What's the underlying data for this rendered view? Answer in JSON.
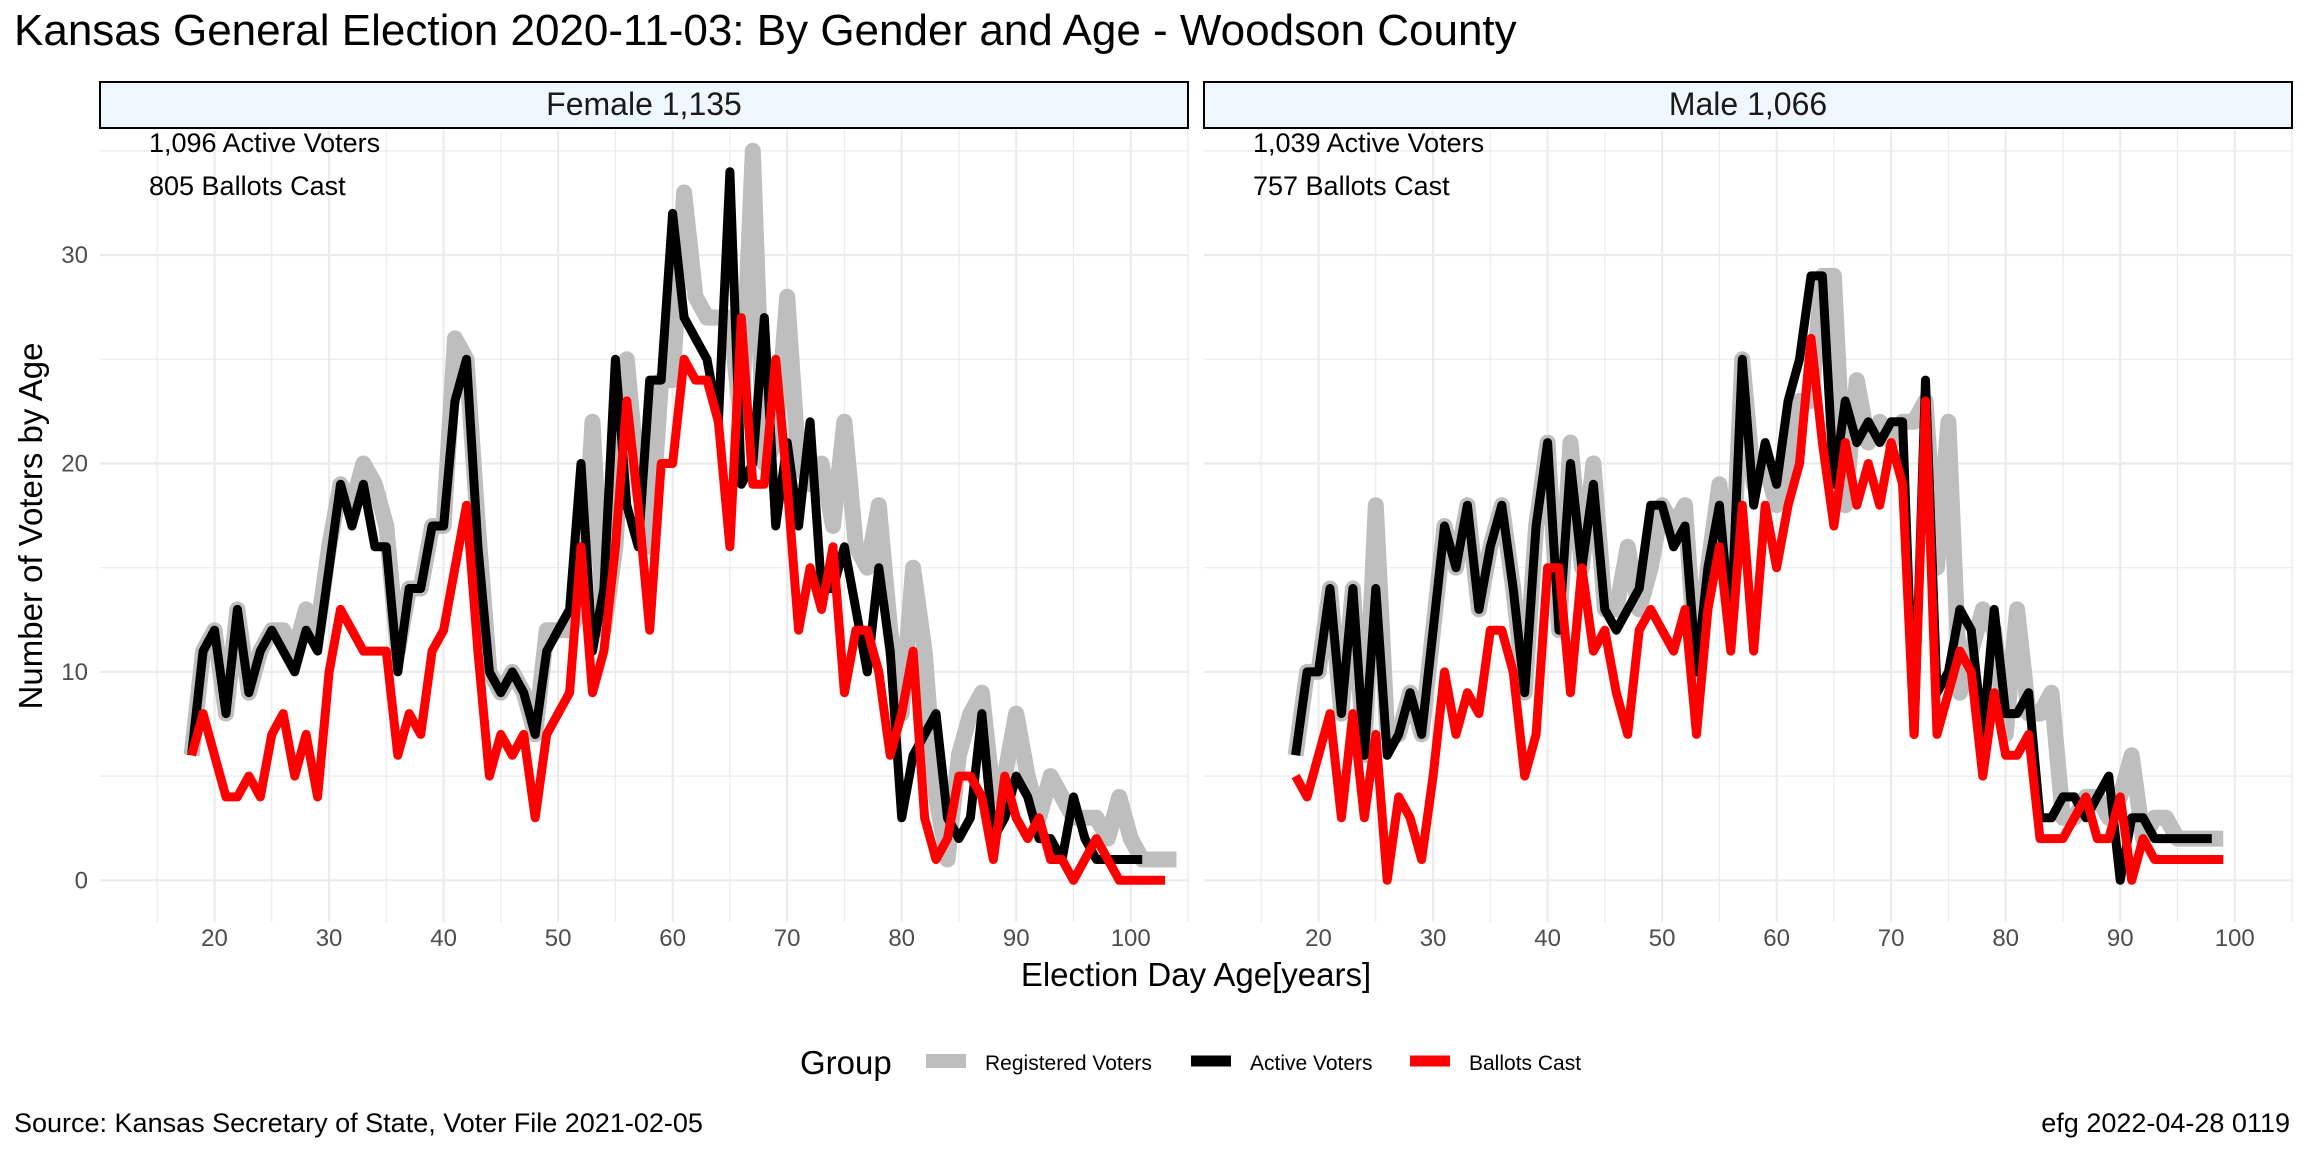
{
  "title": "Kansas General Election 2020-11-03:  By Gender and Age - Woodson County",
  "source": "Source:  Kansas Secretary of State, Voter File  2021-02-05",
  "stamp": "efg 2022-04-28 0119",
  "colors": {
    "registered": "#bebebe",
    "active": "#000000",
    "ballots": "#ff0000",
    "strip_bg": "#f0f8ff",
    "grid": "#ebebeb"
  },
  "chart_data": {
    "type": "line",
    "xlabel": "Election Day Age[years]",
    "ylabel": "Number of Voters by Age",
    "xlim": [
      10,
      105
    ],
    "ylim": [
      -2,
      36
    ],
    "x_ticks": [
      20,
      30,
      40,
      50,
      60,
      70,
      80,
      90,
      100
    ],
    "y_ticks": [
      0,
      10,
      20,
      30
    ],
    "grid": true,
    "legend": {
      "position": "bottom",
      "title": "Group",
      "entries": [
        "Registered Voters",
        "Active Voters",
        "Ballots Cast"
      ]
    },
    "panels": [
      {
        "strip": "Female 1,135",
        "annotations": [
          "1,096 Active Voters",
          "805 Ballots Cast"
        ],
        "series": [
          {
            "name": "Registered Voters",
            "x_start": 18,
            "values": [
              6,
              11,
              12,
              8,
              13,
              9,
              11,
              12,
              12,
              11,
              13,
              12,
              16,
              19,
              18,
              20,
              19,
              17,
              11,
              14,
              14,
              17,
              17,
              26,
              25,
              17,
              10,
              9,
              10,
              9,
              7,
              12,
              12,
              12,
              13,
              22,
              12,
              16,
              25,
              19,
              16,
              24,
              24,
              33,
              28,
              27,
              27,
              27,
              22,
              35,
              20,
              21,
              28,
              20,
              19,
              20,
              17,
              22,
              16,
              15,
              18,
              12,
              8,
              15,
              11,
              4,
              1,
              6,
              8,
              9,
              4,
              5,
              8,
              5,
              3,
              5,
              4,
              3,
              3,
              3,
              2,
              4,
              2,
              1,
              1,
              1,
              1
            ]
          },
          {
            "name": "Active Voters",
            "x_start": 18,
            "values": [
              6,
              11,
              12,
              8,
              13,
              9,
              11,
              12,
              11,
              10,
              12,
              11,
              15,
              19,
              17,
              19,
              16,
              16,
              10,
              14,
              14,
              17,
              17,
              23,
              25,
              16,
              10,
              9,
              10,
              9,
              7,
              11,
              12,
              13,
              20,
              11,
              14,
              25,
              18,
              16,
              24,
              24,
              32,
              27,
              26,
              25,
              22,
              34,
              19,
              20,
              27,
              17,
              21,
              17,
              22,
              14,
              14,
              16,
              13,
              10,
              15,
              11,
              3,
              6,
              7,
              8,
              3,
              2,
              3,
              8,
              2,
              3,
              5,
              4,
              2,
              2,
              1,
              4,
              2,
              1,
              1,
              1,
              1,
              1
            ]
          },
          {
            "name": "Ballots Cast",
            "x_start": 18,
            "values": [
              6,
              8,
              6,
              4,
              4,
              5,
              4,
              7,
              8,
              5,
              7,
              4,
              10,
              13,
              12,
              11,
              11,
              11,
              6,
              8,
              7,
              11,
              12,
              15,
              18,
              11,
              5,
              7,
              6,
              7,
              3,
              7,
              8,
              9,
              16,
              9,
              11,
              16,
              23,
              18,
              12,
              20,
              20,
              25,
              24,
              24,
              22,
              16,
              27,
              19,
              19,
              25,
              19,
              12,
              15,
              13,
              16,
              9,
              12,
              12,
              10,
              6,
              8,
              11,
              3,
              1,
              2,
              5,
              5,
              4,
              1,
              5,
              3,
              2,
              3,
              1,
              1,
              0,
              1,
              2,
              1,
              0,
              0,
              0,
              0,
              0
            ]
          }
        ]
      },
      {
        "strip": "Male 1,066",
        "annotations": [
          "1,039 Active Voters",
          "757 Ballots Cast"
        ],
        "series": [
          {
            "name": "Registered Voters",
            "x_start": 18,
            "values": [
              6,
              10,
              10,
              14,
              8,
              14,
              6,
              18,
              7,
              7,
              9,
              7,
              12,
              17,
              15,
              18,
              13,
              16,
              18,
              14,
              9,
              17,
              21,
              12,
              21,
              15,
              20,
              13,
              13,
              16,
              13,
              15,
              18,
              17,
              18,
              10,
              15,
              19,
              13,
              25,
              19,
              20,
              18,
              19,
              23,
              23,
              29,
              29,
              18,
              24,
              21,
              22,
              21,
              22,
              22,
              23,
              15,
              22,
              9,
              11,
              13,
              12,
              7,
              13,
              8,
              8,
              9,
              3,
              3,
              4,
              4,
              3,
              4,
              6,
              2,
              3,
              3,
              2,
              2,
              2,
              2,
              2
            ]
          },
          {
            "name": "Active Voters",
            "x_start": 18,
            "values": [
              6,
              10,
              10,
              14,
              8,
              14,
              6,
              14,
              6,
              7,
              9,
              7,
              12,
              17,
              15,
              18,
              13,
              16,
              18,
              14,
              9,
              17,
              21,
              12,
              20,
              15,
              19,
              13,
              12,
              13,
              14,
              18,
              18,
              16,
              17,
              10,
              15,
              18,
              12,
              25,
              18,
              21,
              19,
              23,
              25,
              29,
              29,
              19,
              23,
              21,
              22,
              21,
              22,
              22,
              7,
              24,
              9,
              10,
              13,
              12,
              7,
              13,
              8,
              8,
              9,
              3,
              3,
              4,
              4,
              3,
              4,
              5,
              0,
              3,
              3,
              2,
              2,
              2,
              2,
              2,
              2
            ]
          },
          {
            "name": "Ballots Cast",
            "x_start": 18,
            "values": [
              5,
              4,
              6,
              8,
              3,
              8,
              3,
              7,
              0,
              4,
              3,
              1,
              5,
              10,
              7,
              9,
              8,
              12,
              12,
              10,
              5,
              7,
              15,
              15,
              9,
              15,
              11,
              12,
              9,
              7,
              12,
              13,
              12,
              11,
              13,
              7,
              13,
              16,
              11,
              18,
              11,
              18,
              15,
              18,
              20,
              26,
              21,
              17,
              21,
              18,
              20,
              18,
              21,
              19,
              7,
              23,
              7,
              9,
              11,
              10,
              5,
              9,
              6,
              6,
              7,
              2,
              2,
              2,
              3,
              4,
              2,
              2,
              4,
              0,
              2,
              1,
              1,
              1,
              1,
              1,
              1,
              1
            ]
          }
        ]
      }
    ]
  }
}
